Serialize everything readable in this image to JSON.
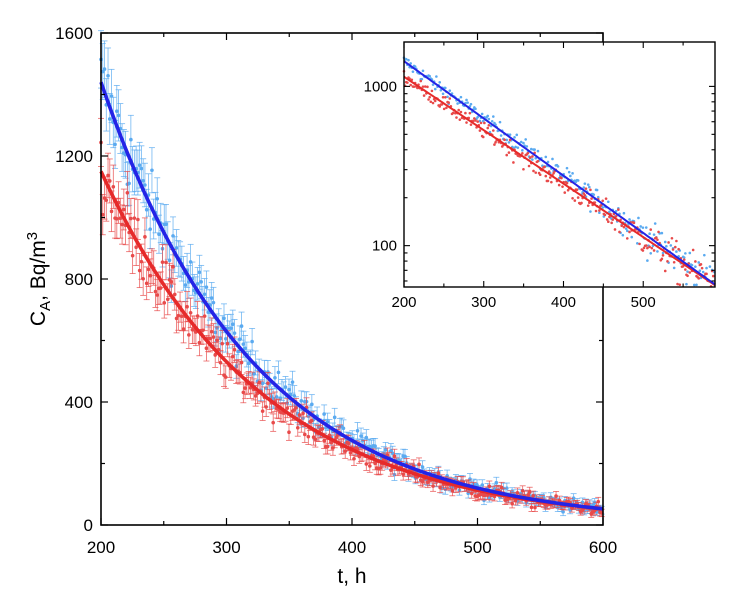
{
  "chart_data": [
    {
      "type": "scatter",
      "title": "",
      "xlabel": "t, h",
      "ylabel_main": "C",
      "ylabel_sub": "A",
      "ylabel_rest": ", Bq/m",
      "ylabel_sup": "3",
      "xlim": [
        200,
        600
      ],
      "ylim": [
        0,
        1600
      ],
      "xticks": [
        "200",
        "300",
        "400",
        "500",
        "600"
      ],
      "yticks": [
        "0",
        "400",
        "800",
        "1200",
        "1600"
      ],
      "grid": false,
      "legend": "none",
      "series": [
        {
          "color_points": "#5aaaf0",
          "color_fit": "#2424e6",
          "fit": {
            "a": 1440,
            "k": 0.00828
          },
          "x": [
            200,
            225,
            250,
            275,
            300,
            325,
            350,
            375,
            400,
            425,
            450,
            475,
            500,
            525,
            550,
            575,
            600
          ],
          "y": [
            1440,
            1170,
            951,
            773,
            628,
            510,
            415,
            337,
            274,
            223,
            181,
            147,
            120,
            97,
            79,
            64,
            52
          ]
        },
        {
          "color_points": "#e84a4a",
          "color_fit": "#e62a2a",
          "fit": {
            "a": 1150,
            "k": 0.00773
          },
          "x": [
            200,
            225,
            250,
            275,
            300,
            325,
            350,
            375,
            400,
            425,
            450,
            475,
            500,
            525,
            550,
            575,
            600
          ],
          "y": [
            1150,
            946,
            779,
            641,
            528,
            434,
            357,
            294,
            242,
            199,
            164,
            135,
            111,
            91,
            75,
            62,
            51
          ]
        }
      ]
    },
    {
      "type": "scatter",
      "title": "",
      "yscale": "log",
      "xlim": [
        200,
        590
      ],
      "ylim": [
        55,
        1900
      ],
      "xticks": [
        "200",
        "300",
        "400",
        "500"
      ],
      "yticks": [
        "100",
        "1000"
      ],
      "series": [
        {
          "color_points": "#5aaaf0",
          "color_fit": "#2424e6",
          "fit": {
            "a": 1440,
            "k": 0.00828
          }
        },
        {
          "color_points": "#e84a4a",
          "color_fit": "#e62a2a",
          "fit": {
            "a": 1150,
            "k": 0.00773
          }
        }
      ]
    }
  ]
}
